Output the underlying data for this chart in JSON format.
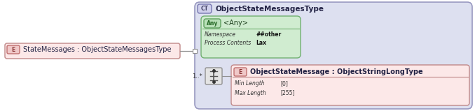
{
  "bg_color": "#ffffff",
  "outer_bg": "#dde0f0",
  "outer_border": "#9898c0",
  "ct_badge_bg": "#d0d0ec",
  "ct_badge_border": "#7878b0",
  "any_badge_bg": "#b8e0b8",
  "any_badge_border": "#60a060",
  "any_box_bg": "#d0ecd0",
  "any_box_border": "#70b070",
  "e_badge_bg": "#f0c8c8",
  "e_badge_border": "#c07070",
  "e_box_bg": "#fce8e8",
  "e_box_border": "#c08888",
  "e_left_bg": "#fce8e8",
  "e_left_border": "#c08888",
  "seq_box_bg": "#e4e4e4",
  "seq_box_border": "#909090",
  "connector_color": "#909090",
  "title_text": "ObjectStateMessagesType",
  "ct_label": "CT",
  "any_label": "Any",
  "any_title": "<Any>",
  "ns_label": "Namespace",
  "ns_value": "##other",
  "pc_label": "Process Contents",
  "pc_value": "Lax",
  "e_left_label": "E",
  "e_left_title": "StateMessages : ObjectStateMessagesType",
  "seq_label": "1..*",
  "e_right_label": "E",
  "e_right_title": "ObjectStateMessage : ObjectStringLongType",
  "min_label": "Min Length",
  "min_value": "[0]",
  "max_label": "Max Length",
  "max_value": "[255]"
}
